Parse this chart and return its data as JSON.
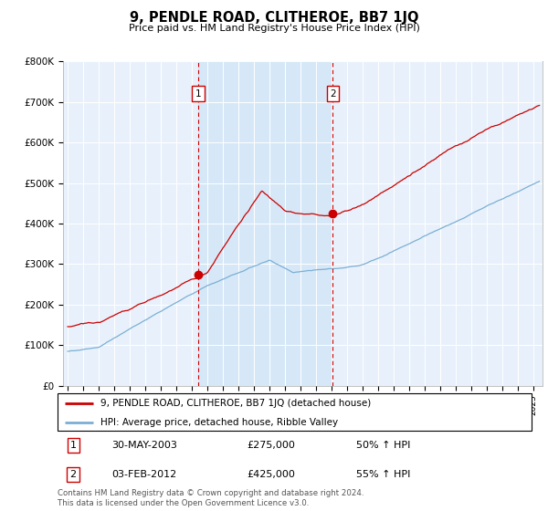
{
  "title": "9, PENDLE ROAD, CLITHEROE, BB7 1JQ",
  "subtitle": "Price paid vs. HM Land Registry's House Price Index (HPI)",
  "ylabel_ticks": [
    "£0",
    "£100K",
    "£200K",
    "£300K",
    "£400K",
    "£500K",
    "£600K",
    "£700K",
    "£800K"
  ],
  "ytick_values": [
    0,
    100000,
    200000,
    300000,
    400000,
    500000,
    600000,
    700000,
    800000
  ],
  "ylim": [
    0,
    800000
  ],
  "red_line_color": "#cc0000",
  "blue_line_color": "#7bafd4",
  "highlight_color": "#d6e8f7",
  "grid_color": "#cccccc",
  "bg_color": "#e8f1fb",
  "transaction1_date": 2003.41,
  "transaction1_price": 275000,
  "transaction2_date": 2012.09,
  "transaction2_price": 425000,
  "legend_line1": "9, PENDLE ROAD, CLITHEROE, BB7 1JQ (detached house)",
  "legend_line2": "HPI: Average price, detached house, Ribble Valley",
  "table_row1": [
    "1",
    "30-MAY-2003",
    "£275,000",
    "50% ↑ HPI"
  ],
  "table_row2": [
    "2",
    "03-FEB-2012",
    "£425,000",
    "55% ↑ HPI"
  ],
  "footnote": "Contains HM Land Registry data © Crown copyright and database right 2024.\nThis data is licensed under the Open Government Licence v3.0."
}
